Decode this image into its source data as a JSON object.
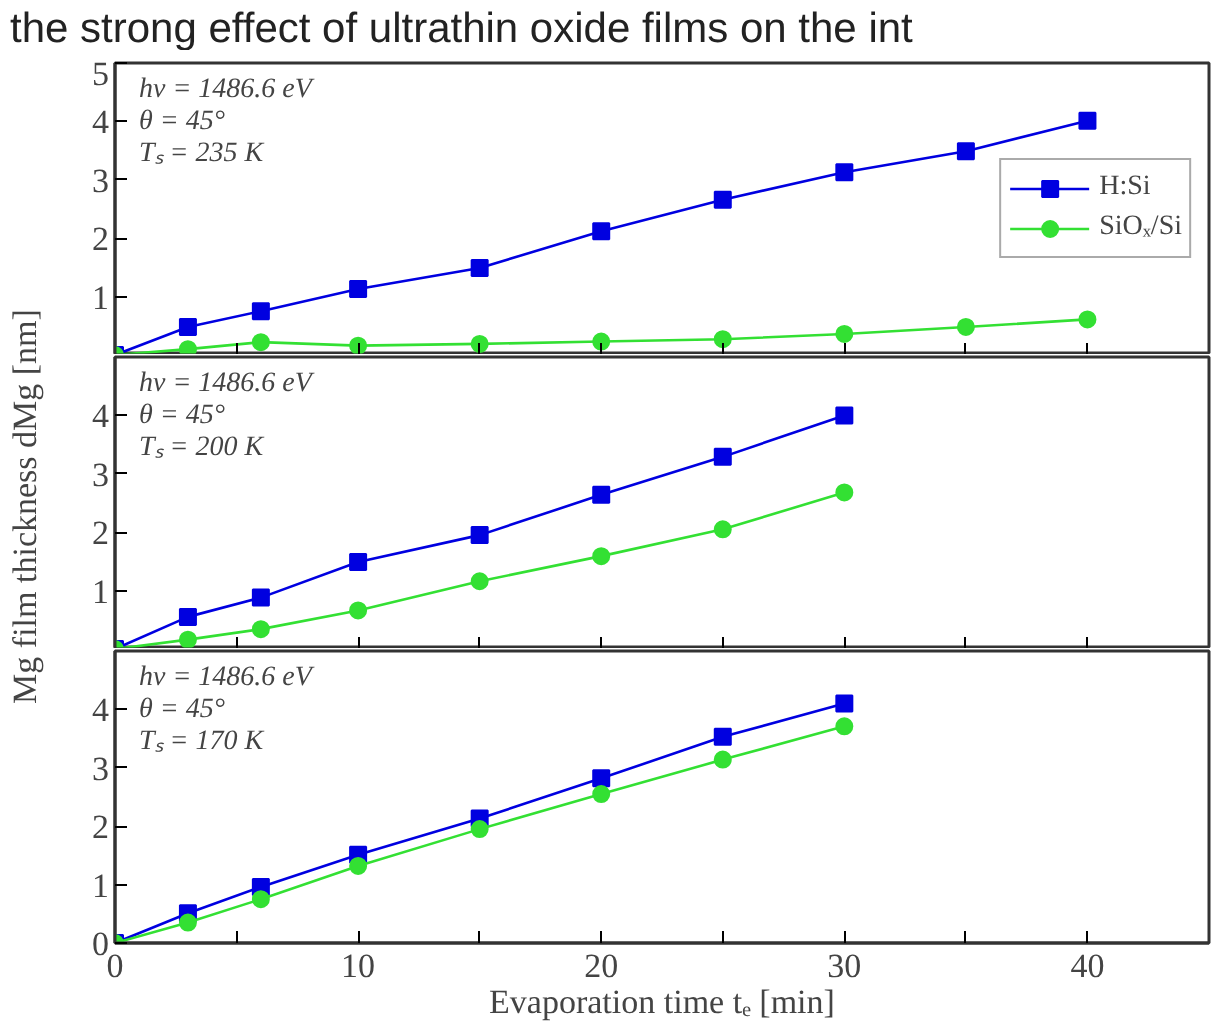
{
  "chart_data": [
    {
      "type": "line",
      "title": "the strong effect of ultrathin oxide films on the int",
      "annotations": [
        "hν = 1486.6 eV",
        "θ = 45°",
        "Tₛ = 235 K"
      ],
      "x": [
        0,
        3,
        6,
        10,
        15,
        20,
        25,
        30,
        35,
        40
      ],
      "xlim": [
        0,
        45
      ],
      "xticks": [
        0,
        {
          "value": 5,
          "label": null
        },
        10,
        {
          "value": 15,
          "label": null
        },
        20,
        {
          "value": 25,
          "label": null
        },
        30,
        {
          "value": 35,
          "label": null
        },
        40
      ],
      "ylim": [
        0,
        5
      ],
      "yticks": [
        1,
        2,
        3,
        4,
        5
      ],
      "tick_labels": "y",
      "grid": false,
      "legend": "right",
      "line_style": "solid",
      "series": [
        {
          "name": "H:Si",
          "color": "#0000e0",
          "marker": "square",
          "values": [
            0,
            0.48,
            0.75,
            1.13,
            1.49,
            2.12,
            2.66,
            3.13,
            3.49,
            4.01
          ]
        },
        {
          "name": "SiOₓ/Si",
          "color": "#33e033",
          "marker": "circle",
          "values": [
            0,
            0.1,
            0.22,
            0.16,
            0.19,
            0.23,
            0.27,
            0.36,
            0.48,
            0.61
          ]
        }
      ]
    },
    {
      "type": "line",
      "ylabel": "Mg film thickness dMg [nm]",
      "annotations": [
        "hν = 1486.6 eV",
        "θ = 45°",
        "Tₛ = 200 K"
      ],
      "x": [
        0,
        3,
        6,
        10,
        15,
        20,
        25,
        30
      ],
      "xlim": [
        0,
        45
      ],
      "xticks": [
        0,
        {
          "value": 5,
          "label": null
        },
        10,
        {
          "value": 15,
          "label": null
        },
        20,
        {
          "value": 25,
          "label": null
        },
        30,
        {
          "value": 35,
          "label": null
        },
        40
      ],
      "ylim": [
        0,
        5
      ],
      "yticks": [
        1,
        2,
        3,
        4
      ],
      "tick_labels": "y",
      "grid": false,
      "line_style": "solid",
      "series": [
        {
          "color": "#0000e0",
          "marker": "square",
          "values": [
            0,
            0.55,
            0.88,
            1.49,
            1.95,
            2.64,
            3.29,
            4.0
          ]
        },
        {
          "color": "#33e033",
          "marker": "circle",
          "values": [
            0,
            0.16,
            0.34,
            0.66,
            1.16,
            1.59,
            2.05,
            2.68
          ]
        }
      ]
    },
    {
      "type": "line",
      "xlabel": "Evaporation time tₑ [min]",
      "annotations": [
        "hν = 1486.6 eV",
        "θ = 45°",
        "Tₛ = 170 K"
      ],
      "x": [
        0,
        3,
        6,
        10,
        15,
        20,
        25,
        30
      ],
      "xlim": [
        0,
        45
      ],
      "xticks": [
        0,
        {
          "value": 5,
          "label": null
        },
        10,
        {
          "value": 15,
          "label": null
        },
        20,
        {
          "value": 25,
          "label": null
        },
        30,
        {
          "value": 35,
          "label": null
        },
        40
      ],
      "ylim": [
        0,
        5
      ],
      "yticks": [
        0,
        1,
        2,
        3,
        4
      ],
      "grid": false,
      "line_style": "solid",
      "series": [
        {
          "color": "#0000e0",
          "marker": "square",
          "values": [
            0,
            0.51,
            0.96,
            1.51,
            2.13,
            2.82,
            3.53,
            4.1
          ]
        },
        {
          "color": "#33e033",
          "marker": "circle",
          "values": [
            0,
            0.35,
            0.75,
            1.32,
            1.95,
            2.55,
            3.14,
            3.71
          ]
        }
      ]
    }
  ]
}
